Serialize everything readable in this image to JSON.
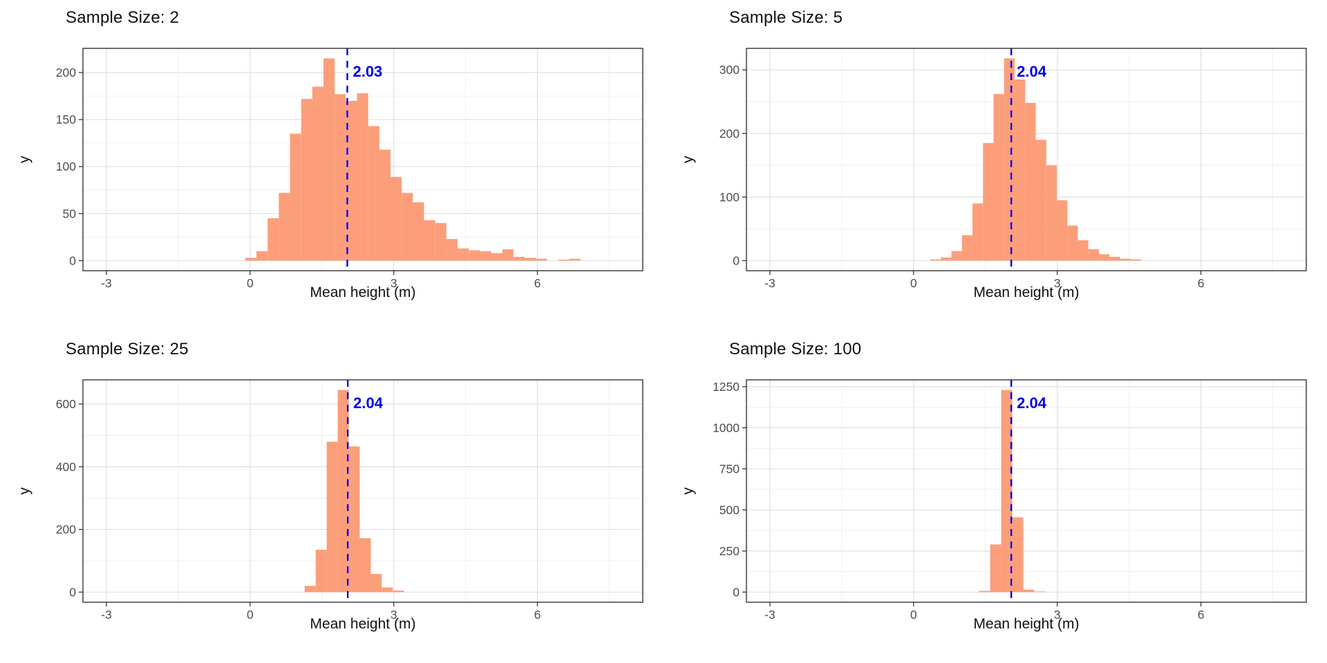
{
  "page": {
    "background": "#FFFFFF"
  },
  "shared": {
    "xlabel": "Mean height (m)",
    "ylabel": "y",
    "x_ticks": [
      -3,
      0,
      3,
      6
    ],
    "x_minor_step": 1.5,
    "x_range": [
      -3.49,
      8.2
    ],
    "grid": true,
    "legend": "none",
    "colors": {
      "bar_fill": "#FC9E7A",
      "vline_blue": "#0000EE",
      "panel_border": "#333333",
      "grid_major": "#E2E2E2",
      "grid_minor": "#F0F0F0",
      "tick_text": "#4D4D4D",
      "title_text": "#101010"
    }
  },
  "chart_data": [
    {
      "type": "bar",
      "subtype": "histogram",
      "title": "Sample Size: 2",
      "xlabel": "Mean height (m)",
      "ylabel": "y",
      "x_ticks": [
        -3,
        0,
        3,
        6
      ],
      "y_ticks": [
        0,
        50,
        100,
        150,
        200
      ],
      "ylim": [
        0,
        226
      ],
      "vline": {
        "x": 2.03,
        "label": "2.03"
      },
      "bins": {
        "start": -0.1,
        "width": 0.2333,
        "counts": [
          3,
          10,
          45,
          72,
          135,
          172,
          185,
          215,
          177,
          170,
          178,
          143,
          118,
          89,
          72,
          62,
          43,
          40,
          23,
          13,
          11,
          10,
          8,
          12,
          4,
          3,
          2,
          0,
          1,
          2
        ]
      }
    },
    {
      "type": "bar",
      "subtype": "histogram",
      "title": "Sample Size: 5",
      "xlabel": "Mean height (m)",
      "ylabel": "y",
      "x_ticks": [
        -3,
        0,
        3,
        6
      ],
      "y_ticks": [
        0,
        100,
        200,
        300
      ],
      "ylim": [
        0,
        334
      ],
      "vline": {
        "x": 2.04,
        "label": "2.04"
      },
      "bins": {
        "start": 0.35,
        "width": 0.22,
        "counts": [
          2,
          5,
          15,
          40,
          90,
          185,
          262,
          318,
          285,
          248,
          190,
          150,
          95,
          55,
          32,
          18,
          10,
          6,
          3,
          2
        ]
      }
    },
    {
      "type": "bar",
      "subtype": "histogram",
      "title": "Sample Size: 25",
      "xlabel": "Mean height (m)",
      "ylabel": "y",
      "x_ticks": [
        -3,
        0,
        3,
        6
      ],
      "y_ticks": [
        0,
        200,
        400,
        600
      ],
      "ylim": [
        0,
        678
      ],
      "vline": {
        "x": 2.04,
        "label": "2.04"
      },
      "bins": {
        "start": 1.14,
        "width": 0.23,
        "counts": [
          20,
          135,
          480,
          645,
          465,
          172,
          58,
          15,
          5
        ]
      }
    },
    {
      "type": "bar",
      "subtype": "histogram",
      "title": "Sample Size: 100",
      "xlabel": "Mean height (m)",
      "ylabel": "y",
      "x_ticks": [
        -3,
        0,
        3,
        6
      ],
      "y_ticks": [
        0,
        250,
        500,
        750,
        1000,
        1250
      ],
      "ylim": [
        0,
        1292
      ],
      "vline": {
        "x": 2.04,
        "label": "2.04"
      },
      "bins": {
        "start": 1.37,
        "width": 0.23,
        "counts": [
          7,
          290,
          1230,
          455,
          15,
          4
        ]
      }
    }
  ]
}
